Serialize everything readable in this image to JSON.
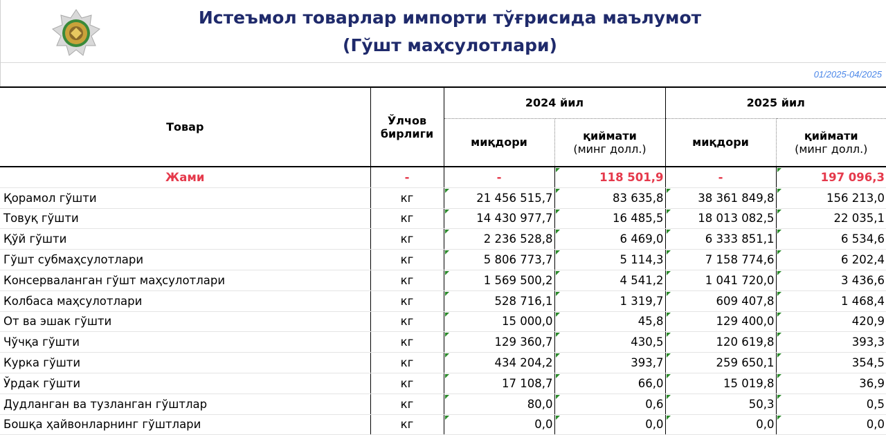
{
  "header": {
    "title_line1": "Истеъмол товарлар импорти тўғрисида маълумот",
    "title_line2": "(Гўшт маҳсулотлари)",
    "period": "01/2025-04/2025"
  },
  "table": {
    "col_product": "Товар",
    "col_unit_line1": "Ўлчов",
    "col_unit_line2": "бирлиги",
    "year_2024": "2024 йил",
    "year_2025": "2025 йил",
    "qty": "миқдори",
    "value_line1": "қиймати",
    "value_line2": "(минг долл.)",
    "total": {
      "name": "Жами",
      "unit": "-",
      "q2024": "-",
      "v2024": "118 501,9",
      "q2025": "-",
      "v2025": "197 096,3"
    },
    "rows": [
      {
        "name": "Қорамол гўшти",
        "unit": "кг",
        "q2024": "21 456 515,7",
        "v2024": "83 635,8",
        "q2025": "38 361 849,8",
        "v2025": "156 213,0"
      },
      {
        "name": "Товуқ гўшти",
        "unit": "кг",
        "q2024": "14 430 977,7",
        "v2024": "16 485,5",
        "q2025": "18 013 082,5",
        "v2025": "22 035,1"
      },
      {
        "name": "Қўй гўшти",
        "unit": "кг",
        "q2024": "2 236 528,8",
        "v2024": "6 469,0",
        "q2025": "6 333 851,1",
        "v2025": "6 534,6"
      },
      {
        "name": "Гўшт субмаҳсулотлари",
        "unit": "кг",
        "q2024": "5 806 773,7",
        "v2024": "5 114,3",
        "q2025": "7 158 774,6",
        "v2025": "6 202,4"
      },
      {
        "name": "Консерваланган гўшт маҳсулотлари",
        "unit": "кг",
        "q2024": "1 569 500,2",
        "v2024": "4 541,2",
        "q2025": "1 041 720,0",
        "v2025": "3 436,6"
      },
      {
        "name": "Колбаса маҳсулотлари",
        "unit": "кг",
        "q2024": "528 716,1",
        "v2024": "1 319,7",
        "q2025": "609 407,8",
        "v2025": "1 468,4"
      },
      {
        "name": "От ва эшак гўшти",
        "unit": "кг",
        "q2024": "15 000,0",
        "v2024": "45,8",
        "q2025": "129 400,0",
        "v2025": "420,9"
      },
      {
        "name": "Чўчқа гўшти",
        "unit": "кг",
        "q2024": "129 360,7",
        "v2024": "430,5",
        "q2025": "120 619,8",
        "v2025": "393,3"
      },
      {
        "name": "Курка гўшти",
        "unit": "кг",
        "q2024": "434 204,2",
        "v2024": "393,7",
        "q2025": "259 650,1",
        "v2025": "354,5"
      },
      {
        "name": "Ўрдак гўшти",
        "unit": "кг",
        "q2024": "17 108,7",
        "v2024": "66,0",
        "q2025": "15 019,8",
        "v2025": "36,9"
      },
      {
        "name": "Дудланган ва тузланган гўштлар",
        "unit": "кг",
        "q2024": "80,0",
        "v2024": "0,6",
        "q2025": "50,3",
        "v2025": "0,5"
      },
      {
        "name": "Бошқа ҳайвонларнинг гўштлари",
        "unit": "кг",
        "q2024": "0,0",
        "v2024": "0,0",
        "q2025": "0,0",
        "v2025": "0,0"
      }
    ]
  },
  "colors": {
    "title": "#1f2a6b",
    "total_text": "#e5394b",
    "period": "#4a86e8",
    "cell_marker": "#2a8a2a"
  }
}
